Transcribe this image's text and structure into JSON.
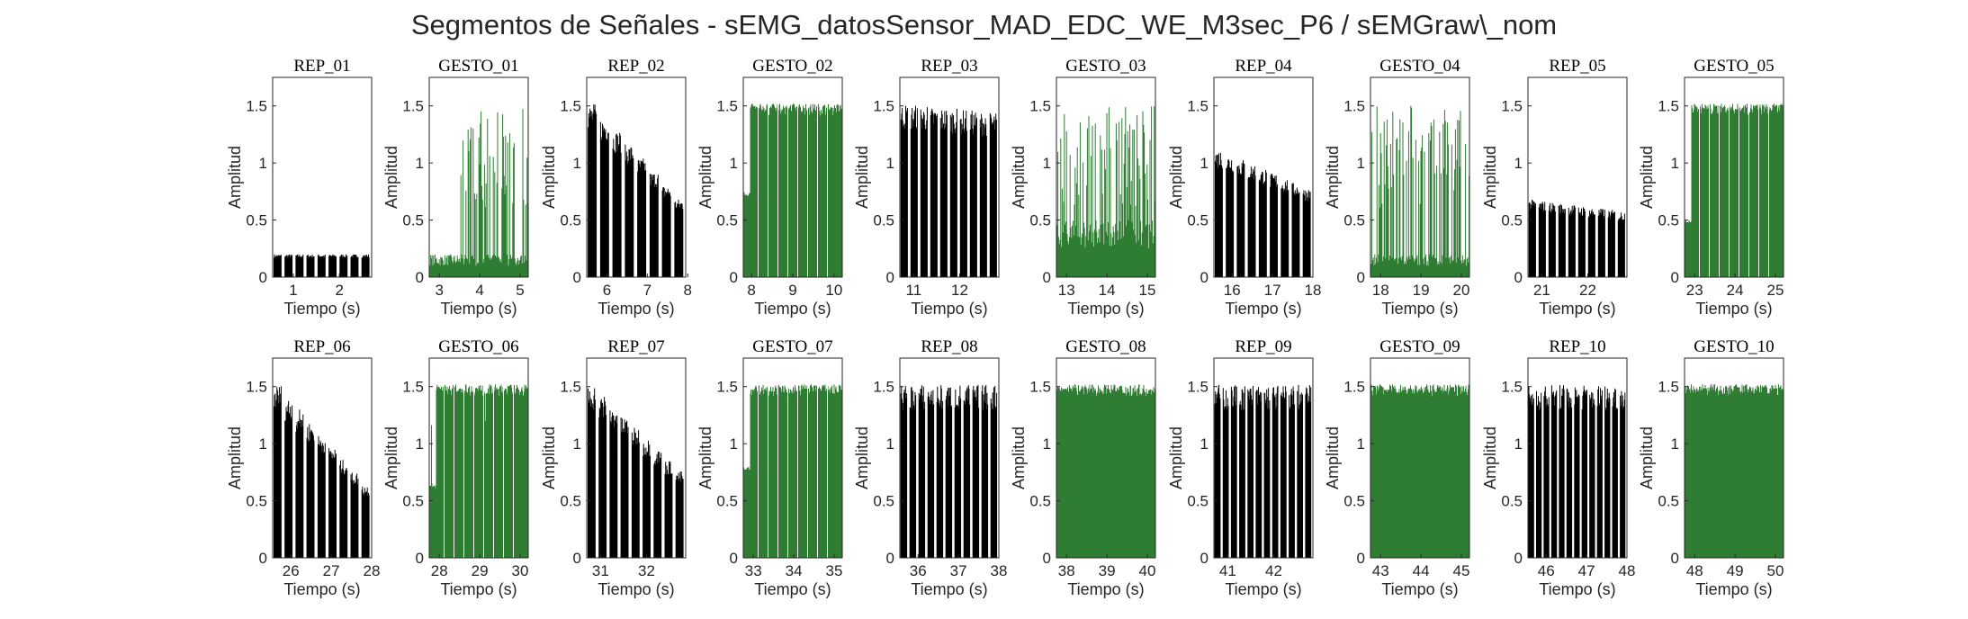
{
  "figure_title": "Segmentos de Señales - sEMG_datosSensor_MAD_EDC_WE_M3sec_P6 / sEMGraw\\_nom",
  "colors": {
    "rep": "#000000",
    "gesto": "#2e7d32",
    "axis": "#262626"
  },
  "chart_data": [
    {
      "type": "area",
      "title": "REP_01",
      "xlabel": "Tiempo (s)",
      "ylabel": "Amplitud",
      "xlim": [
        0.55,
        2.7
      ],
      "ylim": [
        0,
        1.75
      ],
      "xticks": [
        1,
        2
      ],
      "yticks": [
        0,
        0.5,
        1,
        1.5
      ],
      "series": [
        {
          "color": "black",
          "pattern": "bursts",
          "bursts": 9,
          "level": 0.2,
          "decay": 0.0
        }
      ]
    },
    {
      "type": "area",
      "title": "GESTO_01",
      "xlabel": "Tiempo (s)",
      "ylabel": "Amplitud",
      "xlim": [
        2.75,
        5.2
      ],
      "ylim": [
        0,
        1.75
      ],
      "xticks": [
        3,
        4,
        5
      ],
      "yticks": [
        0,
        0.5,
        1,
        1.5
      ],
      "series": [
        {
          "color": "green",
          "pattern": "sparse",
          "low": 0.2,
          "high": 1.52,
          "onset": 0.3
        }
      ]
    },
    {
      "type": "area",
      "title": "REP_02",
      "xlabel": "Tiempo (s)",
      "ylabel": "Amplitud",
      "xlim": [
        5.5,
        7.95
      ],
      "ylim": [
        0,
        1.75
      ],
      "xticks": [
        6,
        7,
        8
      ],
      "yticks": [
        0,
        0.5,
        1,
        1.5
      ],
      "series": [
        {
          "color": "black",
          "pattern": "bursts",
          "bursts": 8,
          "level": 1.52,
          "decay": 0.55
        }
      ]
    },
    {
      "type": "area",
      "title": "GESTO_02",
      "xlabel": "Tiempo (s)",
      "ylabel": "Amplitud",
      "xlim": [
        7.8,
        10.2
      ],
      "ylim": [
        0,
        1.75
      ],
      "xticks": [
        8,
        9,
        10
      ],
      "yticks": [
        0,
        0.5,
        1,
        1.5
      ],
      "series": [
        {
          "color": "green",
          "pattern": "dense",
          "level": 1.52,
          "start_level": 0.75
        }
      ]
    },
    {
      "type": "area",
      "title": "REP_03",
      "xlabel": "Tiempo (s)",
      "ylabel": "Amplitud",
      "xlim": [
        10.7,
        12.85
      ],
      "ylim": [
        0,
        1.75
      ],
      "xticks": [
        11,
        12
      ],
      "yticks": [
        0,
        0.5,
        1,
        1.5
      ],
      "series": [
        {
          "color": "black",
          "pattern": "bursts",
          "bursts": 10,
          "level": 1.52,
          "decay": 0.05
        }
      ]
    },
    {
      "type": "area",
      "title": "GESTO_03",
      "xlabel": "Tiempo (s)",
      "ylabel": "Amplitud",
      "xlim": [
        12.75,
        15.2
      ],
      "ylim": [
        0,
        1.75
      ],
      "xticks": [
        13,
        14,
        15
      ],
      "yticks": [
        0,
        0.5,
        1,
        1.5
      ],
      "series": [
        {
          "color": "green",
          "pattern": "sparse",
          "low": 0.5,
          "high": 1.52,
          "onset": 0.0
        }
      ]
    },
    {
      "type": "area",
      "title": "REP_04",
      "xlabel": "Tiempo (s)",
      "ylabel": "Amplitud",
      "xlim": [
        15.55,
        18.0
      ],
      "ylim": [
        0,
        1.75
      ],
      "xticks": [
        16,
        17,
        18
      ],
      "yticks": [
        0,
        0.5,
        1,
        1.5
      ],
      "series": [
        {
          "color": "black",
          "pattern": "bursts",
          "bursts": 9,
          "level": 1.12,
          "decay": 0.3
        }
      ]
    },
    {
      "type": "area",
      "title": "GESTO_04",
      "xlabel": "Tiempo (s)",
      "ylabel": "Amplitud",
      "xlim": [
        17.75,
        20.2
      ],
      "ylim": [
        0,
        1.75
      ],
      "xticks": [
        18,
        19,
        20
      ],
      "yticks": [
        0,
        0.5,
        1,
        1.5
      ],
      "series": [
        {
          "color": "green",
          "pattern": "sparse",
          "low": 0.2,
          "high": 1.52,
          "onset": 0.0
        }
      ]
    },
    {
      "type": "area",
      "title": "REP_05",
      "xlabel": "Tiempo (s)",
      "ylabel": "Amplitud",
      "xlim": [
        20.7,
        22.85
      ],
      "ylim": [
        0,
        1.75
      ],
      "xticks": [
        21,
        22
      ],
      "yticks": [
        0,
        0.5,
        1,
        1.5
      ],
      "series": [
        {
          "color": "black",
          "pattern": "bursts",
          "bursts": 10,
          "level": 0.68,
          "decay": 0.15
        }
      ]
    },
    {
      "type": "area",
      "title": "GESTO_05",
      "xlabel": "Tiempo (s)",
      "ylabel": "Amplitud",
      "xlim": [
        22.75,
        25.2
      ],
      "ylim": [
        0,
        1.75
      ],
      "xticks": [
        23,
        24,
        25
      ],
      "yticks": [
        0,
        0.5,
        1,
        1.5
      ],
      "series": [
        {
          "color": "green",
          "pattern": "dense",
          "level": 1.52,
          "start_level": 0.5
        }
      ]
    },
    {
      "type": "area",
      "title": "REP_06",
      "xlabel": "Tiempo (s)",
      "ylabel": "Amplitud",
      "xlim": [
        25.55,
        28.0
      ],
      "ylim": [
        0,
        1.75
      ],
      "xticks": [
        26,
        27,
        28
      ],
      "yticks": [
        0,
        0.5,
        1,
        1.5
      ],
      "series": [
        {
          "color": "black",
          "pattern": "bursts",
          "bursts": 9,
          "level": 1.52,
          "decay": 0.58
        }
      ]
    },
    {
      "type": "area",
      "title": "GESTO_06",
      "xlabel": "Tiempo (s)",
      "ylabel": "Amplitud",
      "xlim": [
        27.75,
        30.2
      ],
      "ylim": [
        0,
        1.75
      ],
      "xticks": [
        28,
        29,
        30
      ],
      "yticks": [
        0,
        0.5,
        1,
        1.5
      ],
      "series": [
        {
          "color": "green",
          "pattern": "dense",
          "level": 1.52,
          "start_level": 0.65
        }
      ]
    },
    {
      "type": "area",
      "title": "REP_07",
      "xlabel": "Tiempo (s)",
      "ylabel": "Amplitud",
      "xlim": [
        30.7,
        32.85
      ],
      "ylim": [
        0,
        1.75
      ],
      "xticks": [
        31,
        32
      ],
      "yticks": [
        0,
        0.5,
        1,
        1.5
      ],
      "series": [
        {
          "color": "black",
          "pattern": "bursts",
          "bursts": 9,
          "level": 1.52,
          "decay": 0.5
        }
      ]
    },
    {
      "type": "area",
      "title": "GESTO_07",
      "xlabel": "Tiempo (s)",
      "ylabel": "Amplitud",
      "xlim": [
        32.75,
        35.2
      ],
      "ylim": [
        0,
        1.75
      ],
      "xticks": [
        33,
        34,
        35
      ],
      "yticks": [
        0,
        0.5,
        1,
        1.5
      ],
      "series": [
        {
          "color": "green",
          "pattern": "dense",
          "level": 1.52,
          "start_level": 0.8
        }
      ]
    },
    {
      "type": "area",
      "title": "REP_08",
      "xlabel": "Tiempo (s)",
      "ylabel": "Amplitud",
      "xlim": [
        35.55,
        38.0
      ],
      "ylim": [
        0,
        1.75
      ],
      "xticks": [
        36,
        37,
        38
      ],
      "yticks": [
        0,
        0.5,
        1,
        1.5
      ],
      "series": [
        {
          "color": "black",
          "pattern": "bursts",
          "bursts": 11,
          "level": 1.52,
          "decay": 0.0
        }
      ]
    },
    {
      "type": "area",
      "title": "GESTO_08",
      "xlabel": "Tiempo (s)",
      "ylabel": "Amplitud",
      "xlim": [
        37.75,
        40.2
      ],
      "ylim": [
        0,
        1.75
      ],
      "xticks": [
        38,
        39,
        40
      ],
      "yticks": [
        0,
        0.5,
        1,
        1.5
      ],
      "series": [
        {
          "color": "green",
          "pattern": "dense",
          "level": 1.52,
          "start_level": 1.52
        }
      ]
    },
    {
      "type": "area",
      "title": "REP_09",
      "xlabel": "Tiempo (s)",
      "ylabel": "Amplitud",
      "xlim": [
        40.7,
        42.85
      ],
      "ylim": [
        0,
        1.75
      ],
      "xticks": [
        41,
        42
      ],
      "yticks": [
        0,
        0.5,
        1,
        1.5
      ],
      "series": [
        {
          "color": "black",
          "pattern": "bursts",
          "bursts": 12,
          "level": 1.52,
          "decay": 0.0
        }
      ]
    },
    {
      "type": "area",
      "title": "GESTO_09",
      "xlabel": "Tiempo (s)",
      "ylabel": "Amplitud",
      "xlim": [
        42.75,
        45.2
      ],
      "ylim": [
        0,
        1.75
      ],
      "xticks": [
        43,
        44,
        45
      ],
      "yticks": [
        0,
        0.5,
        1,
        1.5
      ],
      "series": [
        {
          "color": "green",
          "pattern": "dense",
          "level": 1.52,
          "start_level": 1.52
        }
      ]
    },
    {
      "type": "area",
      "title": "REP_10",
      "xlabel": "Tiempo (s)",
      "ylabel": "Amplitud",
      "xlim": [
        45.55,
        48.0
      ],
      "ylim": [
        0,
        1.75
      ],
      "xticks": [
        46,
        47,
        48
      ],
      "yticks": [
        0,
        0.5,
        1,
        1.5
      ],
      "series": [
        {
          "color": "black",
          "pattern": "bursts",
          "bursts": 13,
          "level": 1.52,
          "decay": 0.0
        }
      ]
    },
    {
      "type": "area",
      "title": "GESTO_10",
      "xlabel": "Tiempo (s)",
      "ylabel": "Amplitud",
      "xlim": [
        47.75,
        50.2
      ],
      "ylim": [
        0,
        1.75
      ],
      "xticks": [
        48,
        49,
        50
      ],
      "yticks": [
        0,
        0.5,
        1,
        1.5
      ],
      "series": [
        {
          "color": "green",
          "pattern": "dense",
          "level": 1.52,
          "start_level": 1.52
        }
      ]
    }
  ]
}
